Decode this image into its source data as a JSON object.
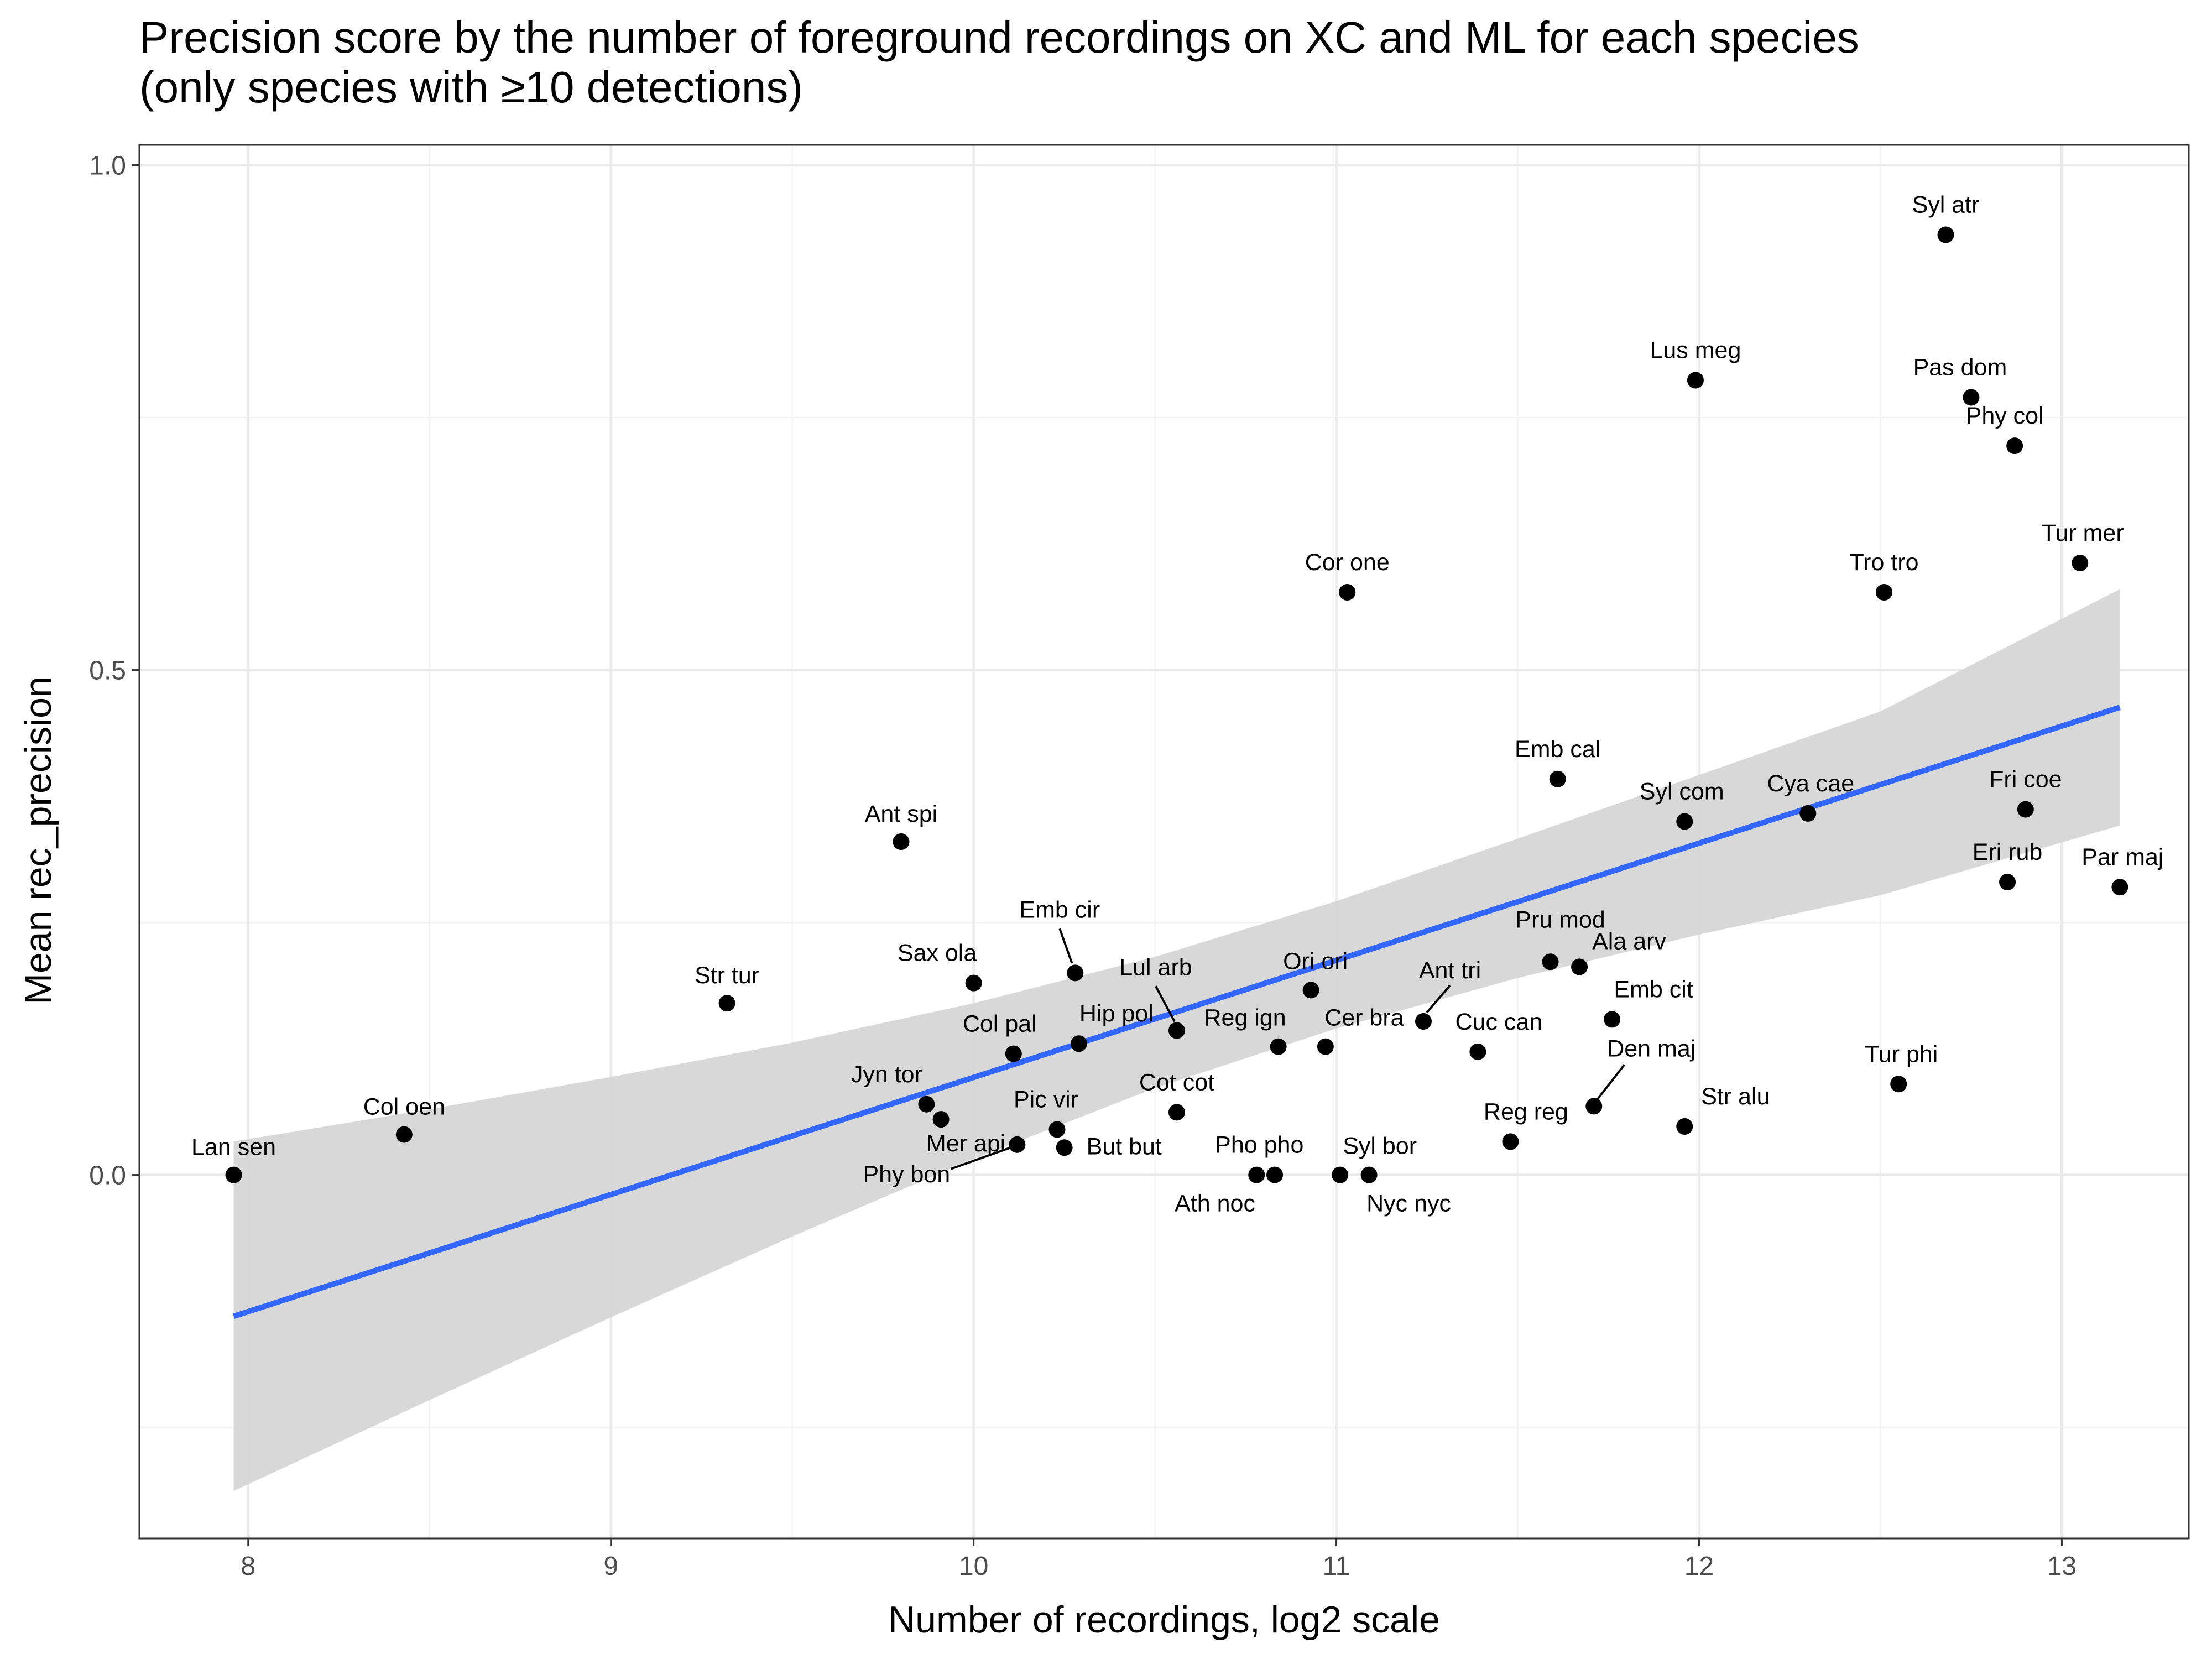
{
  "title_line1": "Precision score by the number of foreground recordings on XC and ML for each species",
  "title_line2": "(only species with ≥10 detections)",
  "chart_data": {
    "type": "scatter",
    "title": "Precision score by the number of foreground recordings on XC and ML for each species (only species with ≥10 detections)",
    "xlabel": "Number of recordings, log2 scale",
    "ylabel": "Mean rec_precision",
    "xlim": [
      7.7,
      13.35
    ],
    "ylim": [
      -0.36,
      1.02
    ],
    "x_ticks": [
      8,
      9,
      10,
      11,
      12,
      13
    ],
    "y_ticks": [
      0.0,
      0.5,
      1.0
    ],
    "x_tick_labels": [
      "8",
      "9",
      "10",
      "11",
      "12",
      "13"
    ],
    "y_tick_labels": [
      "0.0",
      "0.5",
      "1.0"
    ],
    "grid": true,
    "points": [
      {
        "label": "Lan sen",
        "x": 7.96,
        "y": 0.0
      },
      {
        "label": "Col oen",
        "x": 8.43,
        "y": 0.04
      },
      {
        "label": "Str tur",
        "x": 9.32,
        "y": 0.17
      },
      {
        "label": "Ant spi",
        "x": 9.8,
        "y": 0.33
      },
      {
        "label": "Jyn tor",
        "x": 9.87,
        "y": 0.07
      },
      {
        "label": "Mer api",
        "x": 9.91,
        "y": 0.055
      },
      {
        "label": "Sax ola",
        "x": 10.0,
        "y": 0.19
      },
      {
        "label": "Col pal",
        "x": 10.11,
        "y": 0.12
      },
      {
        "label": "Phy bon",
        "x": 10.12,
        "y": 0.03
      },
      {
        "label": "Pic vir",
        "x": 10.23,
        "y": 0.045
      },
      {
        "label": "But but",
        "x": 10.25,
        "y": 0.027
      },
      {
        "label": "Emb cir",
        "x": 10.28,
        "y": 0.2
      },
      {
        "label": "Hip pol",
        "x": 10.29,
        "y": 0.13
      },
      {
        "label": "Cot cot",
        "x": 10.56,
        "y": 0.062
      },
      {
        "label": "Lul arb",
        "x": 10.56,
        "y": 0.143
      },
      {
        "label": "Pho pho",
        "x": 10.78,
        "y": 0.0
      },
      {
        "label": "Ath noc",
        "x": 10.83,
        "y": 0.0
      },
      {
        "label": "Reg ign",
        "x": 10.84,
        "y": 0.127
      },
      {
        "label": "Ori ori",
        "x": 10.93,
        "y": 0.183
      },
      {
        "label": "Cer bra",
        "x": 10.97,
        "y": 0.127
      },
      {
        "label": "Cor one",
        "x": 11.03,
        "y": 0.577
      },
      {
        "label": "Syl bor",
        "x": 11.01,
        "y": 0.0
      },
      {
        "label": "Nyc nyc",
        "x": 11.09,
        "y": 0.0
      },
      {
        "label": "Ant tri",
        "x": 11.24,
        "y": 0.152
      },
      {
        "label": "Cuc can",
        "x": 11.39,
        "y": 0.122
      },
      {
        "label": "Reg reg",
        "x": 11.48,
        "y": 0.033
      },
      {
        "label": "Pru mod",
        "x": 11.59,
        "y": 0.211
      },
      {
        "label": "Emb cal",
        "x": 11.61,
        "y": 0.392
      },
      {
        "label": "Ala arv",
        "x": 11.67,
        "y": 0.206
      },
      {
        "label": "Den maj",
        "x": 11.71,
        "y": 0.068
      },
      {
        "label": "Emb cit",
        "x": 11.76,
        "y": 0.154
      },
      {
        "label": "Str alu",
        "x": 11.96,
        "y": 0.048
      },
      {
        "label": "Syl com",
        "x": 11.96,
        "y": 0.35
      },
      {
        "label": "Lus meg",
        "x": 11.99,
        "y": 0.787
      },
      {
        "label": "Cya cae",
        "x": 12.3,
        "y": 0.358
      },
      {
        "label": "Tro tro",
        "x": 12.51,
        "y": 0.577
      },
      {
        "label": "Tur phi",
        "x": 12.55,
        "y": 0.09
      },
      {
        "label": "Syl atr",
        "x": 12.68,
        "y": 0.931
      },
      {
        "label": "Pas dom",
        "x": 12.75,
        "y": 0.77
      },
      {
        "label": "Eri rub",
        "x": 12.85,
        "y": 0.29
      },
      {
        "label": "Phy col",
        "x": 12.87,
        "y": 0.722
      },
      {
        "label": "Fri coe",
        "x": 12.9,
        "y": 0.362
      },
      {
        "label": "Tur mer",
        "x": 13.05,
        "y": 0.606
      },
      {
        "label": "Par maj",
        "x": 13.16,
        "y": 0.285
      }
    ],
    "trend_line": {
      "x": [
        7.96,
        13.16
      ],
      "y": [
        -0.14,
        0.463
      ],
      "color": "#3366FF"
    },
    "confidence_band": {
      "x": [
        7.96,
        8.5,
        9.0,
        9.5,
        10.0,
        10.5,
        11.0,
        11.5,
        12.0,
        12.5,
        13.16
      ],
      "lower": [
        -0.313,
        -0.223,
        -0.141,
        -0.061,
        0.016,
        0.086,
        0.145,
        0.195,
        0.238,
        0.277,
        0.346
      ],
      "upper": [
        0.033,
        0.065,
        0.097,
        0.131,
        0.17,
        0.216,
        0.271,
        0.333,
        0.396,
        0.459,
        0.58
      ],
      "color": "#d6d6d6"
    },
    "point_color": "#000000",
    "legend": "none"
  }
}
